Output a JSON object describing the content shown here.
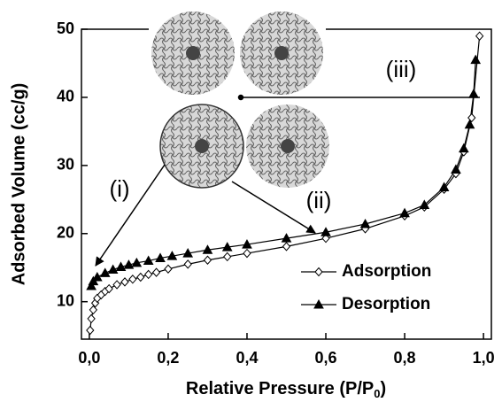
{
  "chart_data": {
    "type": "line",
    "x_label": [
      "Relative Pressure (P/P",
      "0",
      ")"
    ],
    "y_label": "Adsorbed Volume (cc/g)",
    "xlim": [
      -0.02,
      1.02
    ],
    "ylim": [
      4.5,
      50
    ],
    "xticks": [
      {
        "value": 0,
        "label": "0,0"
      },
      {
        "value": 0.2,
        "label": "0,2"
      },
      {
        "value": 0.4,
        "label": "0,4"
      },
      {
        "value": 0.6,
        "label": "0,6"
      },
      {
        "value": 0.8,
        "label": "0,8"
      },
      {
        "value": 1.0,
        "label": "1,0"
      }
    ],
    "yticks": [
      10,
      20,
      30,
      40,
      50
    ],
    "legend": "lower right",
    "annotations": [
      "(i)",
      "(ii)",
      "(iii)"
    ],
    "series": [
      {
        "name": "Adsorption",
        "color": "#000000",
        "marker": "diamond",
        "filled": false,
        "x": [
          0.002,
          0.005,
          0.01,
          0.015,
          0.02,
          0.03,
          0.04,
          0.05,
          0.07,
          0.09,
          0.11,
          0.13,
          0.15,
          0.17,
          0.2,
          0.25,
          0.3,
          0.35,
          0.4,
          0.5,
          0.6,
          0.7,
          0.8,
          0.85,
          0.9,
          0.93,
          0.95,
          0.97,
          0.99
        ],
        "values": [
          5.8,
          7.5,
          8.8,
          9.8,
          10.5,
          11,
          11.5,
          11.9,
          12.5,
          12.9,
          13.3,
          13.6,
          14,
          14.3,
          14.8,
          15.5,
          16.1,
          16.6,
          17.1,
          18.1,
          19.3,
          20.7,
          22.6,
          23.9,
          26.5,
          28.8,
          32,
          37,
          49
        ]
      },
      {
        "name": "Desorption",
        "color": "#000000",
        "marker": "triangle",
        "filled": true,
        "x": [
          0.005,
          0.01,
          0.02,
          0.04,
          0.06,
          0.08,
          0.1,
          0.12,
          0.15,
          0.18,
          0.21,
          0.25,
          0.3,
          0.35,
          0.4,
          0.5,
          0.6,
          0.7,
          0.8,
          0.85,
          0.9,
          0.93,
          0.95,
          0.965,
          0.975,
          0.98
        ],
        "values": [
          12.3,
          13,
          13.6,
          14.2,
          14.7,
          15.1,
          15.4,
          15.7,
          16,
          16.4,
          16.7,
          17.1,
          17.6,
          18,
          18.4,
          19.3,
          20.2,
          21.4,
          23,
          24.2,
          26.8,
          29.4,
          32.5,
          36,
          40.5,
          45.5
        ]
      }
    ]
  }
}
